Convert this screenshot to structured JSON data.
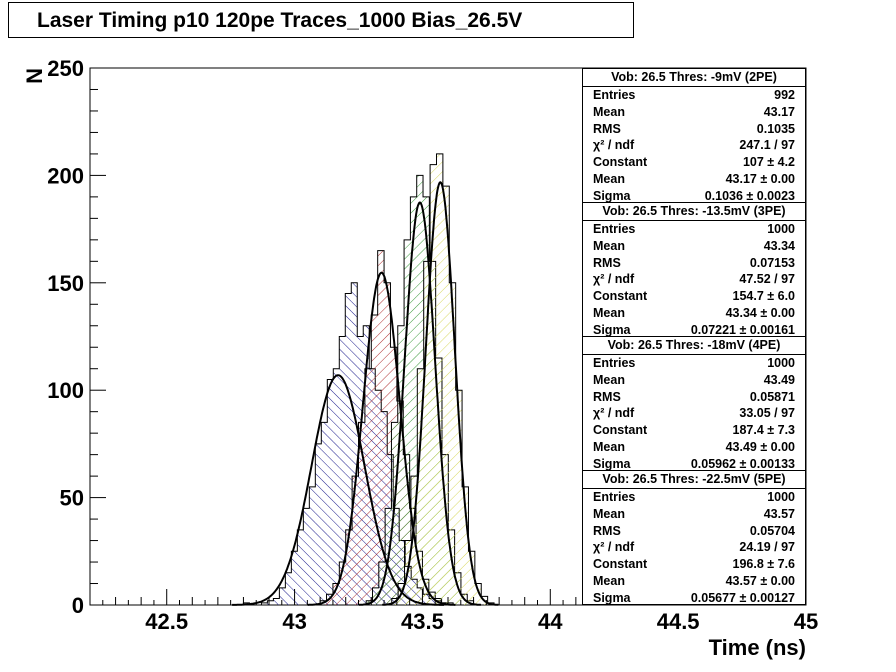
{
  "title": "Laser Timing p10 120pe  Traces_1000  Bias_26.5V",
  "chart_data": {
    "type": "bar",
    "subtype": "histogram with gaussian fits",
    "xlabel": "Time (ns)",
    "ylabel": "N",
    "xlim": [
      42.2,
      45.0
    ],
    "ylim": [
      0,
      250
    ],
    "x_ticks": [
      "42.5",
      "43",
      "43.5",
      "44",
      "44.5",
      "45"
    ],
    "y_ticks": [
      "0",
      "50",
      "100",
      "150",
      "200",
      "250"
    ],
    "grid": false,
    "series": [
      {
        "name": "Vob: 26.5  Thres: -9mV (2PE)",
        "hatch_color": "#1a1a8c",
        "hatch": "backslash",
        "x_range": [
          42.8,
          43.62
        ],
        "counts": [
          1,
          0,
          0,
          1,
          2,
          3,
          8,
          15,
          25,
          35,
          45,
          55,
          75,
          85,
          105,
          110,
          125,
          145,
          150,
          125,
          130,
          110,
          100,
          90,
          70,
          45,
          30,
          18,
          12,
          8,
          5,
          3,
          2,
          1,
          1
        ],
        "fit": {
          "constant": 107,
          "mean": 43.17,
          "sigma": 0.1036
        }
      },
      {
        "name": "Vob: 26.5  Thres: -13.5mV (3PE)",
        "hatch_color": "#b03030",
        "hatch": "slash",
        "x_range": [
          43.1,
          43.6
        ],
        "counts": [
          2,
          5,
          10,
          20,
          35,
          60,
          85,
          110,
          135,
          165,
          150,
          120,
          95,
          70,
          45,
          25,
          12,
          6,
          3,
          1
        ],
        "fit": {
          "constant": 154.7,
          "mean": 43.34,
          "sigma": 0.07221
        }
      },
      {
        "name": "Vob: 26.5  Thres: -18mV (4PE)",
        "hatch_color": "#3a9a3a",
        "hatch": "slash",
        "x_range": [
          43.28,
          43.7
        ],
        "counts": [
          2,
          8,
          20,
          45,
          85,
          130,
          170,
          190,
          200,
          190,
          160,
          115,
          70,
          35,
          15,
          5,
          2
        ],
        "fit": {
          "constant": 187.4,
          "mean": 43.49,
          "sigma": 0.05962
        }
      },
      {
        "name": "Vob: 26.5  Thres: -22.5mV (5PE)",
        "hatch_color": "#d8d860",
        "hatch": "slash",
        "x_range": [
          43.38,
          43.78
        ],
        "counts": [
          3,
          10,
          30,
          60,
          110,
          160,
          205,
          210,
          195,
          150,
          100,
          55,
          25,
          10,
          4,
          1
        ],
        "fit": {
          "constant": 196.8,
          "mean": 43.57,
          "sigma": 0.05677
        }
      }
    ]
  },
  "stats_boxes": [
    {
      "header": "Vob: 26.5  Thres: -9mV (2PE)",
      "rows": [
        {
          "k": "Entries",
          "v": "992"
        },
        {
          "k": "Mean",
          "v": "43.17"
        },
        {
          "k": "RMS",
          "v": "0.1035"
        },
        {
          "k": "χ² / ndf",
          "v": "247.1 / 97"
        },
        {
          "k": "Constant",
          "v": "107 ± 4.2"
        },
        {
          "k": "Mean",
          "v": "43.17 ± 0.00"
        },
        {
          "k": "Sigma",
          "v": "0.1036 ± 0.0023"
        }
      ]
    },
    {
      "header": "Vob: 26.5  Thres: -13.5mV (3PE)",
      "rows": [
        {
          "k": "Entries",
          "v": "1000"
        },
        {
          "k": "Mean",
          "v": "43.34"
        },
        {
          "k": "RMS",
          "v": "0.07153"
        },
        {
          "k": "χ² / ndf",
          "v": "47.52 / 97"
        },
        {
          "k": "Constant",
          "v": "154.7 ± 6.0"
        },
        {
          "k": "Mean",
          "v": "43.34 ± 0.00"
        },
        {
          "k": "Sigma",
          "v": "0.07221 ± 0.00161"
        }
      ]
    },
    {
      "header": "Vob: 26.5  Thres: -18mV (4PE)",
      "rows": [
        {
          "k": "Entries",
          "v": "1000"
        },
        {
          "k": "Mean",
          "v": "43.49"
        },
        {
          "k": "RMS",
          "v": "0.05871"
        },
        {
          "k": "χ² / ndf",
          "v": "33.05 / 97"
        },
        {
          "k": "Constant",
          "v": "187.4 ± 7.3"
        },
        {
          "k": "Mean",
          "v": "43.49 ± 0.00"
        },
        {
          "k": "Sigma",
          "v": "0.05962 ± 0.00133"
        }
      ]
    },
    {
      "header": "Vob: 26.5  Thres: -22.5mV (5PE)",
      "rows": [
        {
          "k": "Entries",
          "v": "1000"
        },
        {
          "k": "Mean",
          "v": "43.57"
        },
        {
          "k": "RMS",
          "v": "0.05704"
        },
        {
          "k": "χ² / ndf",
          "v": "24.19 / 97"
        },
        {
          "k": "Constant",
          "v": "196.8 ± 7.6"
        },
        {
          "k": "Mean",
          "v": "43.57 ± 0.00"
        },
        {
          "k": "Sigma",
          "v": "0.05677 ± 0.00127"
        }
      ]
    }
  ]
}
